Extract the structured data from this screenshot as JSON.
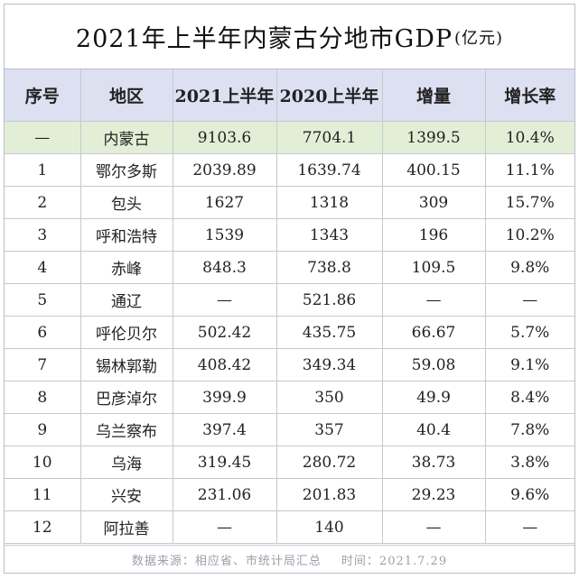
{
  "title": {
    "main": "2021年上半年内蒙古分地市GDP",
    "unit": "(亿元)"
  },
  "table": {
    "headers": [
      "序号",
      "地区",
      "2021上半年",
      "2020上半年",
      "增量",
      "增长率"
    ],
    "rows": [
      [
        "—",
        "内蒙古",
        "9103.6",
        "7704.1",
        "1399.5",
        "10.4%"
      ],
      [
        "1",
        "鄂尔多斯",
        "2039.89",
        "1639.74",
        "400.15",
        "11.1%"
      ],
      [
        "2",
        "包头",
        "1627",
        "1318",
        "309",
        "15.7%"
      ],
      [
        "3",
        "呼和浩特",
        "1539",
        "1343",
        "196",
        "10.2%"
      ],
      [
        "4",
        "赤峰",
        "848.3",
        "738.8",
        "109.5",
        "9.8%"
      ],
      [
        "5",
        "通辽",
        "—",
        "521.86",
        "—",
        "—"
      ],
      [
        "6",
        "呼伦贝尔",
        "502.42",
        "435.75",
        "66.67",
        "5.7%"
      ],
      [
        "7",
        "锡林郭勒",
        "408.42",
        "349.34",
        "59.08",
        "9.1%"
      ],
      [
        "8",
        "巴彦淖尔",
        "399.9",
        "350",
        "49.9",
        "8.4%"
      ],
      [
        "9",
        "乌兰察布",
        "397.4",
        "357",
        "40.4",
        "7.8%"
      ],
      [
        "10",
        "乌海",
        "319.45",
        "280.72",
        "38.73",
        "3.8%"
      ],
      [
        "11",
        "兴安",
        "231.06",
        "201.83",
        "29.23",
        "9.6%"
      ],
      [
        "12",
        "阿拉善",
        "—",
        "140",
        "—",
        "—"
      ]
    ]
  },
  "footer": {
    "source": "数据来源：相应省、市统计局汇总",
    "time": "时间：2021.7.29"
  },
  "colors": {
    "header_bg": "#dde0f1",
    "highlight_row_bg": "#e2efd6",
    "border": "#c4c9d1"
  }
}
